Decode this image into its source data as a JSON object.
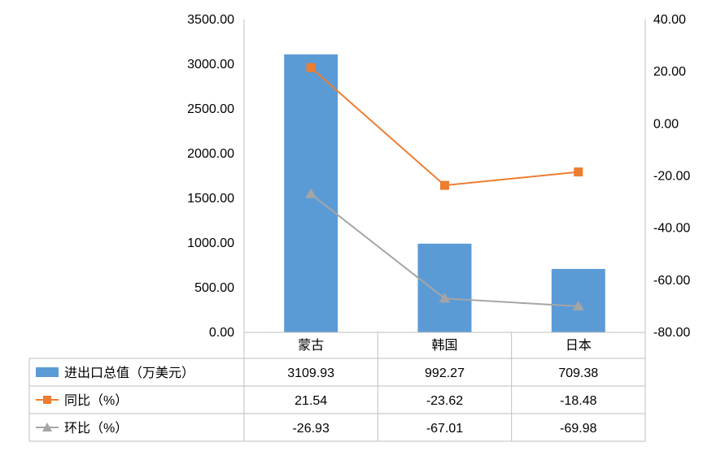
{
  "chart_data": {
    "type": "bar",
    "categories": [
      "蒙古",
      "韩国",
      "日本"
    ],
    "series": [
      {
        "name": "进出口总值（万美元）",
        "type": "bar",
        "axis": "left",
        "color": "#5B9BD5",
        "values": [
          3109.93,
          992.27,
          709.38
        ],
        "value_labels": [
          "3109.93",
          "992.27",
          "709.38"
        ]
      },
      {
        "name": "同比（%）",
        "type": "line",
        "axis": "right",
        "marker": "square",
        "color": "#ED7D31",
        "values": [
          21.54,
          -23.62,
          -18.48
        ],
        "value_labels": [
          "21.54",
          "-23.62",
          "-18.48"
        ]
      },
      {
        "name": "环比（%）",
        "type": "line",
        "axis": "right",
        "marker": "triangle",
        "color": "#A5A5A5",
        "values": [
          -26.93,
          -67.01,
          -69.98
        ],
        "value_labels": [
          "-26.93",
          "-67.01",
          "-69.98"
        ]
      }
    ],
    "ylim_left": [
      0,
      3500
    ],
    "ylim_right": [
      -80,
      40
    ],
    "left_ticks": [
      "0.00",
      "500.00",
      "1000.00",
      "1500.00",
      "2000.00",
      "2500.00",
      "3000.00",
      "3500.00"
    ],
    "right_ticks": [
      "-80.00",
      "-60.00",
      "-40.00",
      "-20.00",
      "0.00",
      "20.00",
      "40.00"
    ],
    "legend": "data-table"
  }
}
